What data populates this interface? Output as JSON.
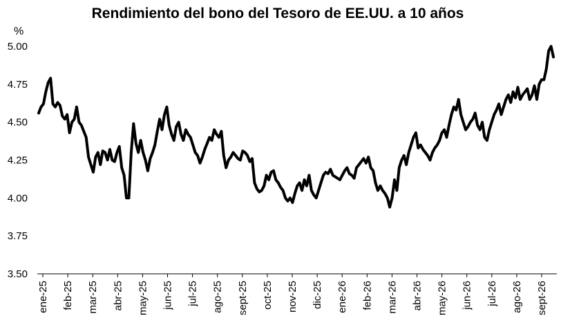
{
  "chart_data": {
    "type": "line",
    "title": "Rendimiento del bono del Tesoro de EE.UU. a 10 años",
    "ylabel": "%",
    "xlabel": "",
    "ylim": [
      3.5,
      5.0
    ],
    "yticks": [
      "5.00",
      "4.75",
      "4.50",
      "4.25",
      "4.00",
      "3.75",
      "3.50"
    ],
    "grid": false,
    "legend": "none",
    "line_color": "#000000",
    "x_tick_labels": [
      "ene-25",
      "feb-25",
      "mar-25",
      "abr-25",
      "may-25",
      "jun-25",
      "jul-25",
      "ago-25",
      "sept-25",
      "oct-25",
      "nov-25",
      "dic-25",
      "ene-26",
      "feb-26",
      "mar-26",
      "abr-26",
      "may-26",
      "jun-26",
      "jul-26",
      "ago-26",
      "sept-26"
    ],
    "series": [
      {
        "values": [
          4.56,
          4.6,
          4.62,
          4.7,
          4.76,
          4.79,
          4.62,
          4.6,
          4.63,
          4.61,
          4.54,
          4.52,
          4.55,
          4.43,
          4.5,
          4.52,
          4.6,
          4.5,
          4.48,
          4.44,
          4.4,
          4.27,
          4.22,
          4.17,
          4.27,
          4.3,
          4.22,
          4.31,
          4.3,
          4.25,
          4.32,
          4.25,
          4.24,
          4.3,
          4.34,
          4.2,
          4.15,
          4.0,
          4.0,
          4.3,
          4.49,
          4.36,
          4.3,
          4.38,
          4.3,
          4.25,
          4.18,
          4.26,
          4.3,
          4.35,
          4.44,
          4.52,
          4.45,
          4.55,
          4.6,
          4.48,
          4.42,
          4.38,
          4.47,
          4.5,
          4.42,
          4.38,
          4.45,
          4.42,
          4.4,
          4.35,
          4.3,
          4.28,
          4.23,
          4.27,
          4.32,
          4.36,
          4.4,
          4.38,
          4.45,
          4.42,
          4.4,
          4.44,
          4.28,
          4.2,
          4.25,
          4.27,
          4.3,
          4.28,
          4.26,
          4.25,
          4.31,
          4.3,
          4.28,
          4.24,
          4.26,
          4.1,
          4.06,
          4.04,
          4.05,
          4.08,
          4.15,
          4.12,
          4.17,
          4.18,
          4.12,
          4.1,
          4.07,
          4.05,
          4.0,
          3.98,
          4.0,
          3.97,
          4.03,
          4.08,
          4.1,
          4.05,
          4.12,
          4.08,
          4.15,
          4.05,
          4.02,
          4.0,
          4.05,
          4.1,
          4.15,
          4.17,
          4.16,
          4.19,
          4.15,
          4.14,
          4.13,
          4.12,
          4.15,
          4.18,
          4.2,
          4.16,
          4.15,
          4.13,
          4.2,
          4.22,
          4.24,
          4.26,
          4.23,
          4.27,
          4.2,
          4.18,
          4.1,
          4.05,
          4.08,
          4.05,
          4.03,
          4.0,
          3.94,
          4.0,
          4.12,
          4.05,
          4.2,
          4.25,
          4.28,
          4.22,
          4.3,
          4.35,
          4.4,
          4.43,
          4.33,
          4.35,
          4.32,
          4.3,
          4.28,
          4.25,
          4.3,
          4.33,
          4.35,
          4.38,
          4.43,
          4.45,
          4.4,
          4.48,
          4.55,
          4.6,
          4.58,
          4.65,
          4.55,
          4.5,
          4.45,
          4.47,
          4.5,
          4.52,
          4.56,
          4.48,
          4.45,
          4.5,
          4.4,
          4.38,
          4.45,
          4.5,
          4.55,
          4.58,
          4.62,
          4.55,
          4.6,
          4.65,
          4.68,
          4.63,
          4.7,
          4.66,
          4.73,
          4.65,
          4.68,
          4.7,
          4.72,
          4.65,
          4.68,
          4.74,
          4.65,
          4.75,
          4.78,
          4.78,
          4.85,
          4.97,
          5.0,
          4.93
        ]
      }
    ]
  }
}
